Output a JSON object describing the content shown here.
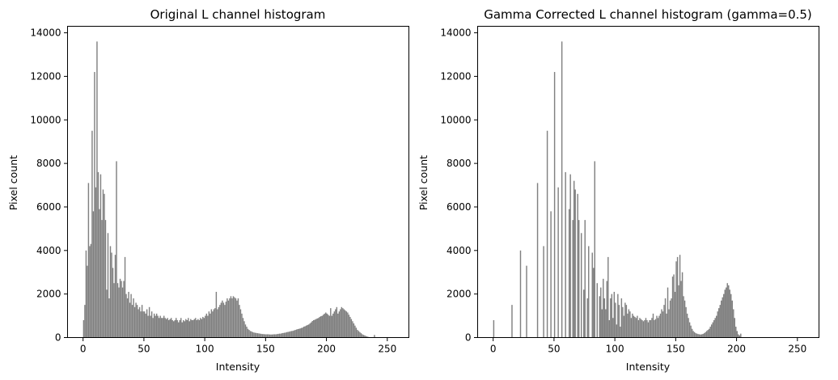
{
  "colors": {
    "bar": "#808080",
    "axes": "#000000",
    "background": "#ffffff"
  },
  "chart_data": [
    {
      "type": "bar",
      "title": "Original L channel histogram",
      "xlabel": "Intensity",
      "ylabel": "Pixel count",
      "xlim": [
        -12.75,
        267.75
      ],
      "ylim": [
        0,
        14300
      ],
      "xticks": [
        0,
        50,
        100,
        150,
        200,
        250
      ],
      "yticks": [
        0,
        2000,
        4000,
        6000,
        8000,
        10000,
        12000,
        14000
      ],
      "grid": false,
      "color": "#808080",
      "bin_width": 1,
      "x_start": 0,
      "counts": [
        800,
        1500,
        4000,
        3300,
        7100,
        4200,
        4300,
        9500,
        5800,
        12200,
        6900,
        13600,
        7600,
        5900,
        7500,
        5400,
        6800,
        6600,
        5400,
        2200,
        4800,
        1800,
        4200,
        3900,
        3200,
        2500,
        3800,
        8100,
        2500,
        2300,
        2700,
        2600,
        2300,
        2600,
        3700,
        2000,
        1800,
        2100,
        1600,
        2000,
        1500,
        1800,
        1400,
        1600,
        1500,
        1300,
        1400,
        1200,
        1500,
        1200,
        1200,
        1100,
        1300,
        1000,
        1400,
        1000,
        1200,
        900,
        1100,
        1000,
        1100,
        1000,
        900,
        1000,
        900,
        900,
        1000,
        900,
        850,
        900,
        800,
        850,
        900,
        800,
        750,
        800,
        900,
        800,
        700,
        800,
        900,
        700,
        800,
        750,
        850,
        800,
        900,
        750,
        850,
        800,
        800,
        850,
        900,
        800,
        850,
        800,
        900,
        850,
        950,
        900,
        1000,
        1100,
        1000,
        1200,
        1100,
        1300,
        1200,
        1300,
        1350,
        2100,
        1300,
        1400,
        1500,
        1600,
        1700,
        1600,
        1500,
        1650,
        1800,
        1700,
        1800,
        1900,
        1800,
        1900,
        1850,
        1800,
        1700,
        1800,
        1500,
        1300,
        1100,
        900,
        750,
        600,
        500,
        400,
        350,
        300,
        280,
        250,
        230,
        220,
        210,
        200,
        190,
        180,
        170,
        160,
        160,
        150,
        150,
        150,
        150,
        140,
        140,
        140,
        150,
        150,
        150,
        160,
        170,
        180,
        180,
        200,
        210,
        220,
        230,
        250,
        260,
        270,
        290,
        300,
        310,
        330,
        350,
        370,
        390,
        400,
        420,
        440,
        460,
        500,
        520,
        550,
        580,
        600,
        650,
        700,
        760,
        800,
        820,
        850,
        880,
        900,
        950,
        980,
        1000,
        1050,
        1100,
        1150,
        1100,
        1050,
        1000,
        1350,
        1000,
        1100,
        1200,
        1300,
        1400,
        1100,
        1200,
        1300,
        1400,
        1350,
        1300,
        1250,
        1200,
        1150,
        1050,
        950,
        850,
        750,
        650,
        550,
        450,
        350,
        300,
        250,
        200,
        150,
        120,
        100,
        70,
        50,
        30,
        20,
        10,
        0,
        0,
        120,
        0,
        0,
        0,
        0,
        0
      ]
    },
    {
      "type": "bar",
      "title": "Gamma Corrected L channel histogram (gamma=0.5)",
      "xlabel": "Intensity",
      "ylabel": "Pixel count",
      "xlim": [
        -12.75,
        267.75
      ],
      "ylim": [
        0,
        14300
      ],
      "xticks": [
        0,
        50,
        100,
        150,
        200,
        250
      ],
      "yticks": [
        0,
        2000,
        4000,
        6000,
        8000,
        10000,
        12000,
        14000
      ],
      "grid": false,
      "color": "#808080",
      "bin_width": 1,
      "x_start": 0,
      "counts": [
        800,
        0,
        0,
        0,
        0,
        0,
        0,
        0,
        0,
        0,
        0,
        0,
        0,
        0,
        0,
        1500,
        0,
        0,
        0,
        0,
        0,
        0,
        4000,
        0,
        0,
        0,
        0,
        3300,
        0,
        0,
        0,
        0,
        0,
        0,
        0,
        0,
        7100,
        0,
        0,
        0,
        0,
        4200,
        0,
        0,
        9500,
        0,
        0,
        5800,
        0,
        0,
        12200,
        0,
        0,
        6900,
        0,
        0,
        13600,
        0,
        0,
        7600,
        0,
        0,
        5900,
        7500,
        0,
        5400,
        7200,
        6800,
        0,
        6600,
        5400,
        0,
        4800,
        0,
        2200,
        5400,
        0,
        1800,
        4200,
        0,
        0,
        3900,
        3200,
        8100,
        0,
        2500,
        0,
        1900,
        2300,
        1300,
        2700,
        1800,
        1300,
        2600,
        3700,
        800,
        1800,
        2000,
        900,
        2100,
        1600,
        600,
        2000,
        1500,
        500,
        1800,
        1400,
        1000,
        1600,
        1500,
        1100,
        1300,
        1200,
        900,
        1100,
        1000,
        950,
        900,
        1000,
        800,
        900,
        850,
        800,
        750,
        800,
        900,
        800,
        700,
        800,
        800,
        900,
        1100,
        800,
        850,
        1000,
        900,
        1000,
        1100,
        1300,
        1200,
        1500,
        1800,
        1100,
        2300,
        1300,
        1700,
        1800,
        2800,
        2900,
        2100,
        3500,
        3700,
        2400,
        3800,
        2600,
        3000,
        1900,
        1700,
        1400,
        1100,
        900,
        700,
        550,
        400,
        300,
        250,
        200,
        180,
        160,
        150,
        140,
        150,
        170,
        200,
        250,
        300,
        350,
        400,
        500,
        600,
        700,
        800,
        900,
        1000,
        1200,
        1350,
        1500,
        1700,
        1850,
        2000,
        2200,
        2300,
        2500,
        2400,
        2200,
        2000,
        1700,
        1300,
        900,
        500,
        300,
        150,
        100,
        180,
        0,
        0,
        0,
        0,
        0,
        0,
        0,
        0,
        0,
        0,
        0,
        0,
        0,
        0,
        0,
        0,
        0,
        0,
        0,
        0,
        0,
        0,
        0,
        0,
        0,
        0,
        0,
        0,
        0,
        0,
        0,
        0,
        0,
        0,
        0,
        0,
        0,
        0,
        0,
        0,
        0,
        0,
        0,
        0,
        0,
        0,
        0,
        0,
        0,
        0,
        0,
        0,
        0
      ]
    }
  ]
}
